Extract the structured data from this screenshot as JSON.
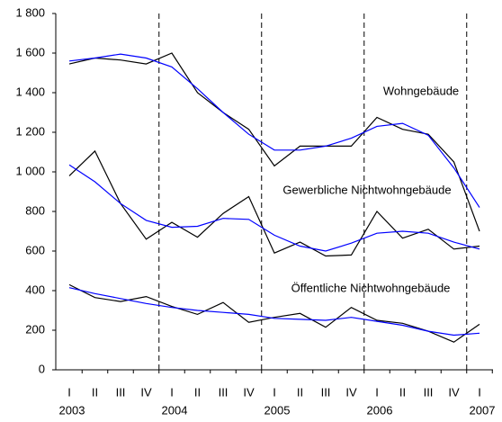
{
  "chart_data": {
    "type": "line",
    "categories": [
      "I",
      "II",
      "III",
      "IV",
      "I",
      "II",
      "III",
      "IV",
      "I",
      "II",
      "III",
      "IV",
      "I",
      "II",
      "III",
      "IV",
      "I"
    ],
    "year_labels": [
      "2003",
      null,
      null,
      null,
      "2004",
      null,
      null,
      null,
      "2005",
      null,
      null,
      null,
      "2006",
      null,
      null,
      null,
      "2007"
    ],
    "series": [
      {
        "color": "#000000",
        "values": [
          1545,
          1575,
          1565,
          1545,
          1600,
          1400,
          1300,
          1215,
          1030,
          1130,
          1130,
          1130,
          1275,
          1215,
          1190,
          1050,
          700
        ]
      },
      {
        "color": "#0000ff",
        "values": [
          1560,
          1575,
          1595,
          1575,
          1530,
          1420,
          1300,
          1190,
          1110,
          1110,
          1130,
          1170,
          1230,
          1245,
          1185,
          1020,
          820
        ]
      },
      {
        "color": "#000000",
        "values": [
          980,
          1105,
          840,
          660,
          745,
          670,
          790,
          875,
          590,
          645,
          575,
          580,
          800,
          665,
          710,
          610,
          625
        ]
      },
      {
        "color": "#0000ff",
        "values": [
          1035,
          950,
          840,
          755,
          720,
          725,
          765,
          760,
          680,
          625,
          600,
          640,
          690,
          700,
          690,
          645,
          610
        ]
      },
      {
        "color": "#000000",
        "values": [
          430,
          365,
          345,
          370,
          320,
          280,
          340,
          240,
          265,
          285,
          215,
          315,
          250,
          235,
          195,
          140,
          230
        ]
      },
      {
        "color": "#0000ff",
        "values": [
          415,
          385,
          360,
          335,
          315,
          300,
          290,
          280,
          260,
          255,
          250,
          265,
          245,
          225,
          195,
          175,
          185
        ]
      }
    ],
    "annotations": [
      "Wohngebäude",
      "Gewerbliche Nichtwohngebäude",
      "Öffentliche Nichtwohngebäude"
    ],
    "ylim": [
      0,
      1800
    ],
    "yticks": [
      0,
      200,
      400,
      600,
      800,
      {
        "value": 1000,
        "label": "1 000"
      },
      {
        "value": 1200,
        "label": "1 200"
      },
      {
        "value": 1400,
        "label": "1 400"
      },
      {
        "value": 1600,
        "label": "1 600"
      },
      {
        "value": 1800,
        "label": "1 800"
      }
    ],
    "grid": false
  }
}
